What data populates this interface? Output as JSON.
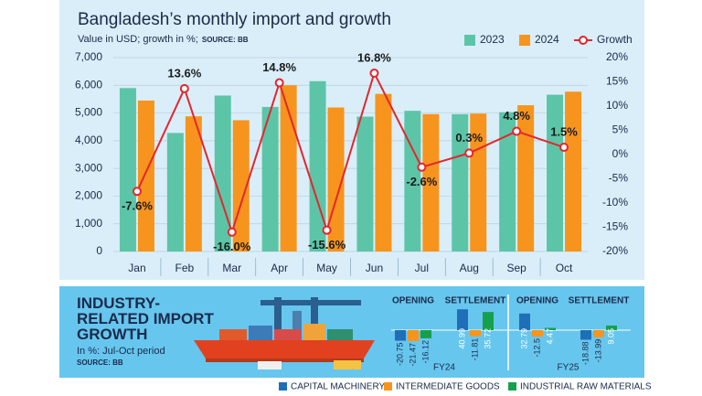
{
  "chart_data": [
    {
      "type": "bar_line",
      "title": "Bangladesh’s monthly import and growth",
      "subtitle": "Value in USD; growth in %;",
      "source": "SOURCE: BB",
      "categories": [
        "Jan",
        "Feb",
        "Mar",
        "Apr",
        "May",
        "Jun",
        "Jul",
        "Aug",
        "Sep",
        "Oct"
      ],
      "series": [
        {
          "name": "2023",
          "color": "#5cc5a7",
          "values": [
            5900,
            4280,
            5630,
            5220,
            6150,
            4870,
            5080,
            4960,
            5030,
            5660
          ]
        },
        {
          "name": "2024",
          "color": "#f7941d",
          "values": [
            5450,
            4880,
            4740,
            6000,
            5200,
            5690,
            4960,
            4980,
            5280,
            5770
          ]
        },
        {
          "name": "Growth",
          "color": "#e3262e",
          "axis": "y2",
          "values": [
            -7.6,
            13.6,
            -16.0,
            14.8,
            -15.6,
            16.8,
            -2.6,
            0.3,
            4.8,
            1.5
          ],
          "value_labels": [
            "-7.6%",
            "13.6%",
            "-16.0%",
            "14.8%",
            "-15.6%",
            "16.8%",
            "-2.6%",
            "0.3%",
            "4.8%",
            "1.5%"
          ]
        }
      ],
      "ylim": [
        0,
        7000
      ],
      "yticks": [
        0,
        {
          "value": 1000,
          "label": "1,000"
        },
        {
          "value": 2000,
          "label": "2,000"
        },
        {
          "value": 3000,
          "label": "3,000"
        },
        {
          "value": 4000,
          "label": "4,000"
        },
        {
          "value": 5000,
          "label": "5,000"
        },
        {
          "value": 6000,
          "label": "6,000"
        },
        {
          "value": 7000,
          "label": "7,000"
        }
      ],
      "y2lim": [
        -20,
        20
      ],
      "y2ticks": [
        {
          "value": -20,
          "label": "-20%"
        },
        {
          "value": -15,
          "label": "-15%"
        },
        {
          "value": -10,
          "label": "-10%"
        },
        {
          "value": -5,
          "label": "-5%"
        },
        {
          "value": 0,
          "label": "0%"
        },
        {
          "value": 5,
          "label": "5%"
        },
        {
          "value": 10,
          "label": "10%"
        },
        {
          "value": 15,
          "label": "15%"
        },
        {
          "value": 20,
          "label": "20%"
        }
      ],
      "grid": true
    },
    {
      "type": "grouped_bar",
      "title": "INDUSTRY-RELATED IMPORT GROWTH",
      "subtitle": "In %: Jul-Oct period",
      "source": "SOURCE: BB",
      "categories": [
        "OPENING",
        "SETTLEMENT",
        "OPENING",
        "SETTLEMENT"
      ],
      "groups": [
        "FY24",
        "FY25"
      ],
      "series": [
        {
          "name": "CAPITAL MACHINERY",
          "color": "#1f6fb8",
          "values": [
            -20.75,
            40.99,
            32.79,
            -18.88
          ]
        },
        {
          "name": "INTERMEDIATE GOODS",
          "color": "#f7941d",
          "values": [
            -21.47,
            -11.81,
            -12.5,
            -13.99
          ]
        },
        {
          "name": "INDUSTRIAL RAW MATERIALS",
          "color": "#16a04b",
          "values": [
            -16.12,
            35.72,
            4.47,
            9.05
          ]
        }
      ],
      "ylim": [
        -45,
        45
      ]
    }
  ]
}
